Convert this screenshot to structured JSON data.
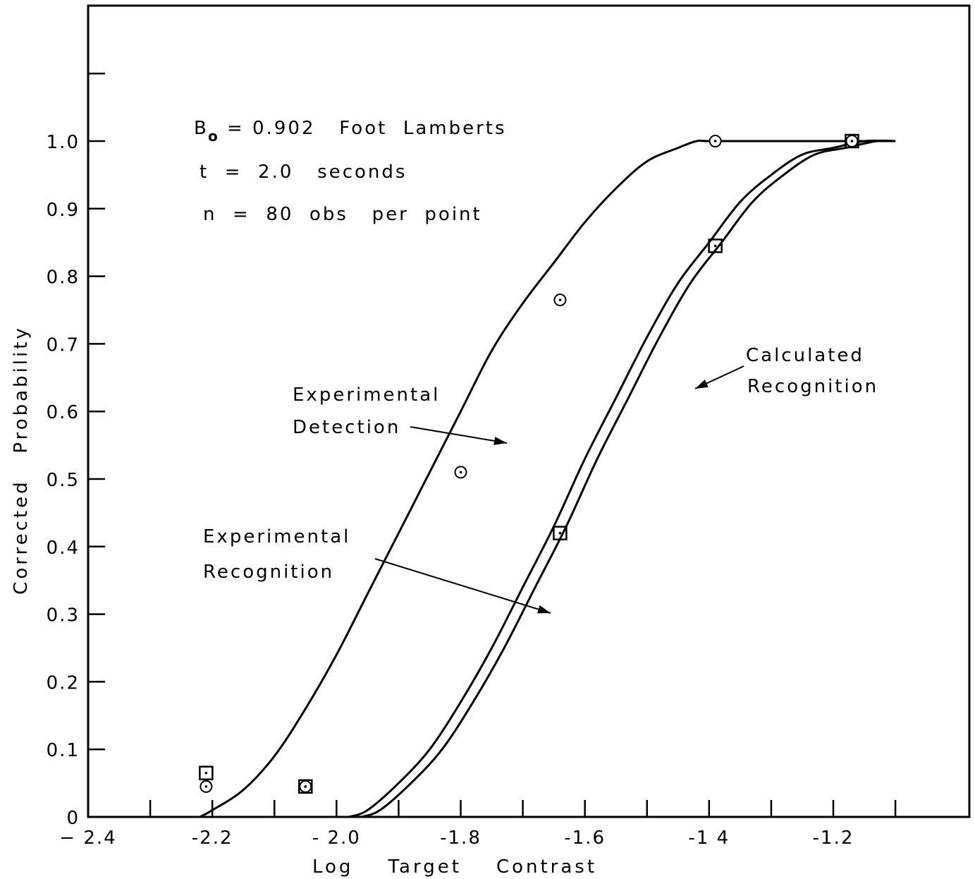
{
  "chart_data": {
    "type": "line",
    "title": "",
    "xlabel": "Log    Target    Contrast",
    "ylabel": "Corrected   Probability",
    "xlim": [
      -2.4,
      -1.1
    ],
    "ylim": [
      0,
      1.2
    ],
    "grid": false,
    "x_ticks": [
      -2.4,
      -2.2,
      -2.0,
      -1.8,
      -1.6,
      -1.4,
      -1.2
    ],
    "x_tick_labels": [
      "− 2.4",
      "-2.2",
      "- 2.0",
      "-1.8",
      "-1.6",
      "-1 4",
      "-1.2"
    ],
    "y_ticks": [
      0,
      0.1,
      0.2,
      0.3,
      0.4,
      0.5,
      0.6,
      0.7,
      0.8,
      0.9,
      1.0
    ],
    "y_tick_labels": [
      "0",
      "0.1",
      "0.2",
      "0.3",
      "0.4",
      "0.5",
      "0.6",
      "0.7",
      "0.8",
      "0.9",
      "1.0"
    ],
    "annotations": {
      "b0_label": "B",
      "b0_sub": "o",
      "b0_rest": "= 0.902   Foot  Lamberts",
      "t_line": "t  =  2.0   seconds",
      "n_line": "n  =  80  obs   per  point",
      "exp_detection_1": "Experimental",
      "exp_detection_2": "Detection",
      "exp_recognition_1": "Experimental",
      "exp_recognition_2": "Recognition",
      "calc_recognition_1": "Calculated",
      "calc_recognition_2": "Recognition"
    },
    "series": [
      {
        "name": "Experimental Detection",
        "marker": "circle",
        "x": [
          -2.21,
          -2.05,
          -1.8,
          -1.64,
          -1.39,
          -1.17
        ],
        "y": [
          0.045,
          0.045,
          0.51,
          0.765,
          1.0,
          1.0
        ],
        "curve_x": [
          -2.22,
          -2.2,
          -2.15,
          -2.1,
          -2.05,
          -2.0,
          -1.95,
          -1.9,
          -1.85,
          -1.8,
          -1.75,
          -1.7,
          -1.65,
          -1.6,
          -1.55,
          -1.5,
          -1.45,
          -1.42,
          -1.4,
          -1.3,
          -1.2,
          -1.1
        ],
        "curve_y": [
          0.0,
          0.01,
          0.04,
          0.09,
          0.16,
          0.24,
          0.33,
          0.42,
          0.51,
          0.6,
          0.69,
          0.76,
          0.82,
          0.88,
          0.93,
          0.97,
          0.99,
          1.0,
          1.0,
          1.0,
          1.0,
          1.0
        ]
      },
      {
        "name": "Experimental Recognition",
        "marker": "square",
        "x": [
          -2.21,
          -2.05,
          -1.64,
          -1.39,
          -1.17
        ],
        "y": [
          0.065,
          0.045,
          0.42,
          0.845,
          1.0
        ],
        "curve_x": [
          -1.98,
          -1.95,
          -1.9,
          -1.85,
          -1.8,
          -1.75,
          -1.7,
          -1.65,
          -1.6,
          -1.55,
          -1.5,
          -1.45,
          -1.4,
          -1.35,
          -1.3,
          -1.25,
          -1.2,
          -1.15,
          -1.1
        ],
        "curve_y": [
          0.0,
          0.01,
          0.05,
          0.1,
          0.17,
          0.25,
          0.34,
          0.43,
          0.53,
          0.62,
          0.71,
          0.79,
          0.85,
          0.91,
          0.95,
          0.98,
          0.99,
          1.0,
          1.0
        ]
      },
      {
        "name": "Calculated Recognition",
        "marker": "none",
        "curve_x": [
          -1.96,
          -1.93,
          -1.88,
          -1.83,
          -1.78,
          -1.73,
          -1.68,
          -1.63,
          -1.58,
          -1.53,
          -1.48,
          -1.43,
          -1.38,
          -1.33,
          -1.28,
          -1.23,
          -1.18,
          -1.13,
          -1.1
        ],
        "curve_y": [
          0.0,
          0.01,
          0.05,
          0.1,
          0.17,
          0.25,
          0.34,
          0.43,
          0.53,
          0.62,
          0.71,
          0.79,
          0.85,
          0.91,
          0.95,
          0.98,
          0.99,
          1.0,
          1.0
        ]
      }
    ]
  }
}
